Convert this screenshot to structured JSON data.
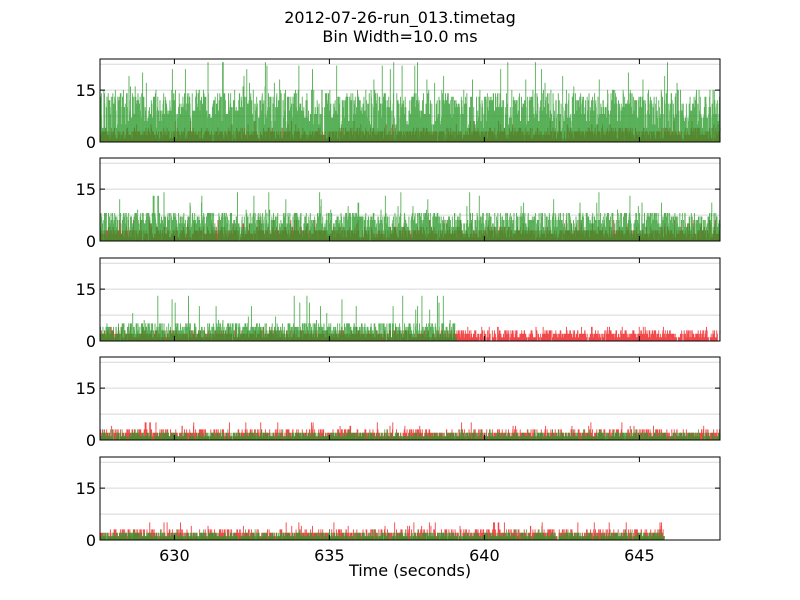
{
  "chart_data": {
    "type": "bar",
    "title": "2012-07-26-run_013.timetag",
    "subtitle": "Bin Width=10.0 ms",
    "xlabel": "Time (seconds)",
    "ylabel": "",
    "xlim": [
      627.6,
      647.6
    ],
    "ylim": [
      0,
      24
    ],
    "x_ticks": [
      630,
      635,
      640,
      645
    ],
    "x_tick_labels": [
      "630",
      "635",
      "640",
      "645"
    ],
    "y_ticks": [
      0,
      15
    ],
    "y_tick_labels": [
      "0",
      "15"
    ],
    "grid": true,
    "bin_width_s": 0.01,
    "colors": {
      "series_a": "#f0282a",
      "series_b": "#2a9a2a",
      "overlap": "#3f6b12"
    },
    "panels": [
      {
        "series": [
          {
            "color": "red",
            "x_start": 627.6,
            "x_end": 647.6,
            "typical_count": 2,
            "peak_count": 7
          },
          {
            "color": "green",
            "x_start": 627.6,
            "x_end": 647.6,
            "typical_count": 9,
            "peak_count": 24
          }
        ]
      },
      {
        "series": [
          {
            "color": "red",
            "x_start": 627.6,
            "x_end": 647.6,
            "typical_count": 2,
            "peak_count": 7
          },
          {
            "color": "green",
            "x_start": 627.6,
            "x_end": 647.6,
            "typical_count": 5,
            "peak_count": 15
          }
        ]
      },
      {
        "series": [
          {
            "color": "red",
            "x_start": 627.6,
            "x_end": 647.6,
            "typical_count": 1.5,
            "peak_count": 5
          },
          {
            "color": "green",
            "x_start": 627.6,
            "x_end": 639.1,
            "typical_count": 3,
            "peak_count": 14
          }
        ]
      },
      {
        "series": [
          {
            "color": "red",
            "x_start": 627.6,
            "x_end": 647.6,
            "typical_count": 1.5,
            "peak_count": 6
          },
          {
            "color": "green",
            "x_start": 627.6,
            "x_end": 647.6,
            "typical_count": 1,
            "peak_count": 4
          }
        ]
      },
      {
        "series": [
          {
            "color": "red",
            "x_start": 627.6,
            "x_end": 645.8,
            "typical_count": 1.5,
            "peak_count": 6
          },
          {
            "color": "green",
            "x_start": 627.6,
            "x_end": 645.8,
            "typical_count": 1,
            "peak_count": 4
          }
        ]
      }
    ]
  }
}
